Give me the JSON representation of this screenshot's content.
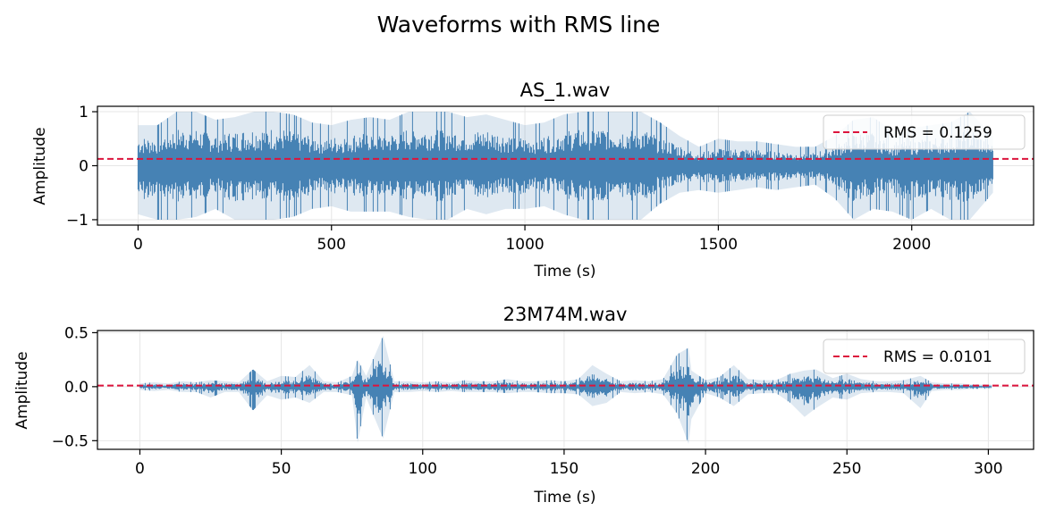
{
  "figure_title": "Waveforms with RMS line",
  "colors": {
    "waveform": "#4682b4",
    "rms": "#dc143c",
    "grid": "#e6e6e6"
  },
  "chart_data": [
    {
      "type": "line",
      "title": "AS_1.wav",
      "xlabel": "Time (s)",
      "ylabel": "Amplitude",
      "xlim": [
        -105,
        2315
      ],
      "ylim": [
        -1.1,
        1.1
      ],
      "x_ticks": [
        0,
        500,
        1000,
        1500,
        2000
      ],
      "x_tick_labels": [
        "0",
        "500",
        "1000",
        "1500",
        "2000"
      ],
      "y_ticks": [
        -1,
        0,
        1
      ],
      "y_tick_labels": [
        "−1",
        "0",
        "1"
      ],
      "grid": true,
      "legend_position": "upper-right",
      "rms": {
        "label": "RMS = 0.1259",
        "value": 0.1259
      },
      "series": [
        {
          "x": [
            0,
            50,
            100,
            150,
            200,
            250,
            300,
            350,
            400,
            450,
            500,
            550,
            600,
            650,
            700,
            750,
            800,
            850,
            900,
            950,
            1000,
            1050,
            1100,
            1150,
            1200,
            1250,
            1300,
            1350,
            1400,
            1450,
            1500,
            1550,
            1600,
            1650,
            1700,
            1750,
            1800,
            1850,
            1900,
            1950,
            2000,
            2050,
            2100,
            2150,
            2210
          ],
          "y_max": [
            0.75,
            0.75,
            1.0,
            1.0,
            0.85,
            0.9,
            1.0,
            1.0,
            0.95,
            0.8,
            0.75,
            0.85,
            0.9,
            0.85,
            1.0,
            1.0,
            1.0,
            0.9,
            0.95,
            0.85,
            0.75,
            0.8,
            0.95,
            1.0,
            1.0,
            1.0,
            1.0,
            0.8,
            0.55,
            0.35,
            0.5,
            0.45,
            0.45,
            0.4,
            0.35,
            0.35,
            0.55,
            0.85,
            0.9,
            0.65,
            0.7,
            0.75,
            0.8,
            1.0,
            0.55
          ],
          "y_min": [
            -0.9,
            -1.0,
            -1.0,
            -0.95,
            -0.8,
            -1.0,
            -1.0,
            -1.0,
            -0.95,
            -0.8,
            -0.75,
            -0.85,
            -0.85,
            -0.85,
            -0.95,
            -1.0,
            -1.0,
            -0.8,
            -0.9,
            -0.8,
            -0.8,
            -0.75,
            -0.9,
            -1.0,
            -1.0,
            -1.0,
            -1.0,
            -0.7,
            -0.5,
            -0.45,
            -0.5,
            -0.45,
            -0.4,
            -0.45,
            -0.4,
            -0.35,
            -0.6,
            -1.0,
            -0.8,
            -0.85,
            -1.0,
            -0.8,
            -1.0,
            -1.0,
            -0.5
          ]
        }
      ]
    },
    {
      "type": "line",
      "title": "23M74M.wav",
      "xlabel": "Time (s)",
      "ylabel": "Amplitude",
      "xlim": [
        -15,
        316
      ],
      "ylim": [
        -0.58,
        0.52
      ],
      "x_ticks": [
        0,
        50,
        100,
        150,
        200,
        250,
        300
      ],
      "x_tick_labels": [
        "0",
        "50",
        "100",
        "150",
        "200",
        "250",
        "300"
      ],
      "y_ticks": [
        -0.5,
        0.0,
        0.5
      ],
      "y_tick_labels": [
        "−0.5",
        "0.0",
        "0.5"
      ],
      "grid": true,
      "legend_position": "upper-right",
      "rms": {
        "label": "RMS = 0.0101",
        "value": 0.0101
      },
      "series": [
        {
          "x": [
            0,
            5,
            10,
            15,
            20,
            25,
            30,
            35,
            40,
            45,
            50,
            55,
            60,
            65,
            70,
            75,
            77,
            80,
            86,
            90,
            95,
            100,
            105,
            110,
            115,
            120,
            125,
            130,
            135,
            140,
            145,
            150,
            155,
            160,
            165,
            170,
            175,
            180,
            185,
            190,
            194,
            195,
            200,
            205,
            210,
            215,
            220,
            225,
            230,
            235,
            239,
            245,
            250,
            255,
            260,
            265,
            270,
            276,
            280,
            285,
            290,
            295,
            301
          ],
          "y_max": [
            0.03,
            0.04,
            0.03,
            0.05,
            0.04,
            0.06,
            0.05,
            0.04,
            0.16,
            0.05,
            0.1,
            0.09,
            0.2,
            0.05,
            0.04,
            0.1,
            0.25,
            0.1,
            0.47,
            0.05,
            0.05,
            0.04,
            0.05,
            0.04,
            0.06,
            0.05,
            0.05,
            0.07,
            0.05,
            0.05,
            0.06,
            0.05,
            0.07,
            0.2,
            0.12,
            0.05,
            0.06,
            0.05,
            0.07,
            0.3,
            0.36,
            0.15,
            0.06,
            0.09,
            0.2,
            0.07,
            0.06,
            0.06,
            0.12,
            0.15,
            0.16,
            0.08,
            0.12,
            0.07,
            0.05,
            0.05,
            0.06,
            0.1,
            0.04,
            0.03,
            0.03,
            0.02,
            0.02
          ],
          "y_min": [
            -0.03,
            -0.04,
            -0.03,
            -0.05,
            -0.05,
            -0.1,
            -0.05,
            -0.05,
            -0.22,
            -0.08,
            -0.12,
            -0.1,
            -0.15,
            -0.05,
            -0.05,
            -0.08,
            -0.52,
            -0.1,
            -0.48,
            -0.05,
            -0.05,
            -0.04,
            -0.05,
            -0.04,
            -0.05,
            -0.05,
            -0.05,
            -0.06,
            -0.05,
            -0.05,
            -0.06,
            -0.06,
            -0.07,
            -0.18,
            -0.15,
            -0.05,
            -0.06,
            -0.05,
            -0.07,
            -0.25,
            -0.53,
            -0.3,
            -0.06,
            -0.1,
            -0.18,
            -0.07,
            -0.06,
            -0.06,
            -0.15,
            -0.28,
            -0.2,
            -0.1,
            -0.12,
            -0.06,
            -0.05,
            -0.05,
            -0.06,
            -0.2,
            -0.04,
            -0.03,
            -0.03,
            -0.02,
            -0.02
          ]
        }
      ]
    }
  ]
}
